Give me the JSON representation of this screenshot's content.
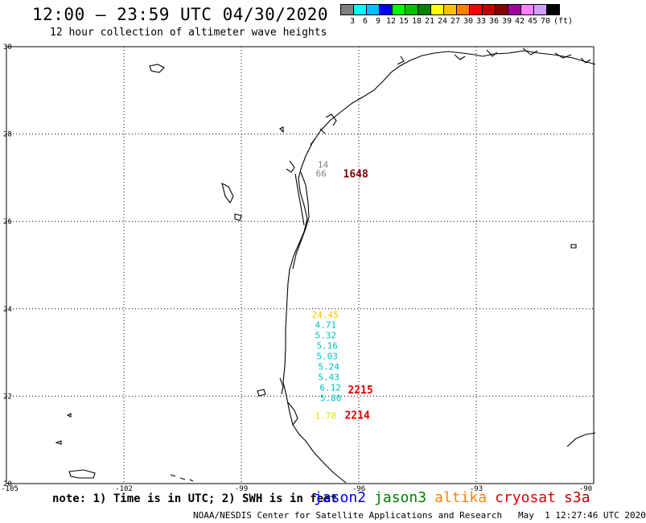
{
  "title": "12:00 – 23:59 UTC 04/30/2020",
  "subtitle": "12 hour collection of altimeter wave heights",
  "scale": {
    "colors": [
      "#808080",
      "#00ffff",
      "#00c0ff",
      "#0000ff",
      "#00ff00",
      "#00c000",
      "#008000",
      "#ffff00",
      "#ffc000",
      "#ff8000",
      "#ff0000",
      "#c00000",
      "#800000",
      "#a000a0",
      "#ff80ff",
      "#d0a0ff",
      "#000000"
    ],
    "labels": [
      "3",
      "6",
      "9",
      "12",
      "15",
      "18",
      "21",
      "24",
      "27",
      "30",
      "33",
      "36",
      "39",
      "42",
      "45",
      "70",
      "(ft)"
    ]
  },
  "axes": {
    "lat_labels": [
      "30",
      "28",
      "26",
      "24",
      "22",
      "20"
    ],
    "lon_labels": [
      "-105",
      "-102",
      "-99",
      "-96",
      "-93",
      "-90"
    ]
  },
  "labels": [
    {
      "text": "14",
      "color": "#808080",
      "lon": -97.05,
      "lat": 27.3
    },
    {
      "text": "66",
      "color": "#808080",
      "lon": -97.1,
      "lat": 27.1
    },
    {
      "text": "1648",
      "color": "#800000",
      "lon": -96.4,
      "lat": 27.08,
      "bold": true
    },
    {
      "text": "24.45",
      "color": "#ffc000",
      "lon": -97.2,
      "lat": 23.87
    },
    {
      "text": "4.71",
      "color": "#00c0c0",
      "lon": -97.12,
      "lat": 23.64
    },
    {
      "text": "5.32",
      "color": "#00c0c0",
      "lon": -97.12,
      "lat": 23.4
    },
    {
      "text": "5.16",
      "color": "#00c0c0",
      "lon": -97.08,
      "lat": 23.16
    },
    {
      "text": "5.03",
      "color": "#00c0c0",
      "lon": -97.08,
      "lat": 22.92
    },
    {
      "text": "5.24",
      "color": "#00c0c0",
      "lon": -97.04,
      "lat": 22.68
    },
    {
      "text": "5.43",
      "color": "#00c0c0",
      "lon": -97.04,
      "lat": 22.44
    },
    {
      "text": "6.12",
      "color": "#00c0c0",
      "lon": -97.0,
      "lat": 22.2
    },
    {
      "text": "2215",
      "color": "#e00000",
      "lon": -96.28,
      "lat": 22.14,
      "bold": true
    },
    {
      "text": "5.80",
      "color": "#00c0c0",
      "lon": -96.99,
      "lat": 21.96
    },
    {
      "text": "1.78",
      "color": "#e0e000",
      "lon": -97.12,
      "lat": 21.56
    },
    {
      "text": "2214",
      "color": "#e00000",
      "lon": -96.36,
      "lat": 21.56,
      "bold": true
    }
  ],
  "footer": {
    "note": "note: 1) Time is in UTC; 2) SWH is in feet",
    "credit": "NOAA/NESDIS Center for Satellite Applications and Research   May  1 12:27:46 UTC 2020"
  },
  "satellites": [
    {
      "name": "jason2",
      "color": "#0000ff"
    },
    {
      "name": "jason3",
      "color": "#008000"
    },
    {
      "name": "altika",
      "color": "#ff8000"
    },
    {
      "name": "cryosat",
      "color": "#e00000"
    },
    {
      "name": "s3a",
      "color": "#c00000"
    }
  ]
}
